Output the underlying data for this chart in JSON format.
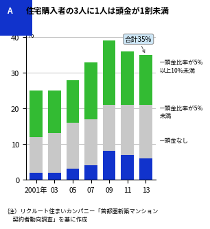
{
  "years": [
    "2001年",
    "03",
    "05",
    "07",
    "09",
    "11",
    "13"
  ],
  "blue": [
    2,
    2,
    3,
    4,
    8,
    7,
    6
  ],
  "gray": [
    10,
    11,
    13,
    13,
    13,
    14,
    15
  ],
  "green": [
    13,
    12,
    12,
    16,
    18,
    15,
    14
  ],
  "blue_color": "#1133cc",
  "gray_color": "#c8c8c8",
  "green_color": "#33bb33",
  "title": "住宅購入者の3人に1人は頭金が1割未満",
  "ylabel": "%",
  "ylim": [
    0,
    42
  ],
  "yticks": [
    0,
    10,
    20,
    30,
    40
  ],
  "annotation_text": "合計35%",
  "note_text": "(注）リクルート住まいカンパニー「首都圏新築マンション\n　契約者動向調査」を基に作成",
  "legend1": "頭金比率が5%\n以上10%未満",
  "legend2": "頭金比率が5%\n未満",
  "legend3": "頭金なし",
  "bg_color": "#ffffff",
  "title_box_color": "#1133cc",
  "title_box_text": "A"
}
